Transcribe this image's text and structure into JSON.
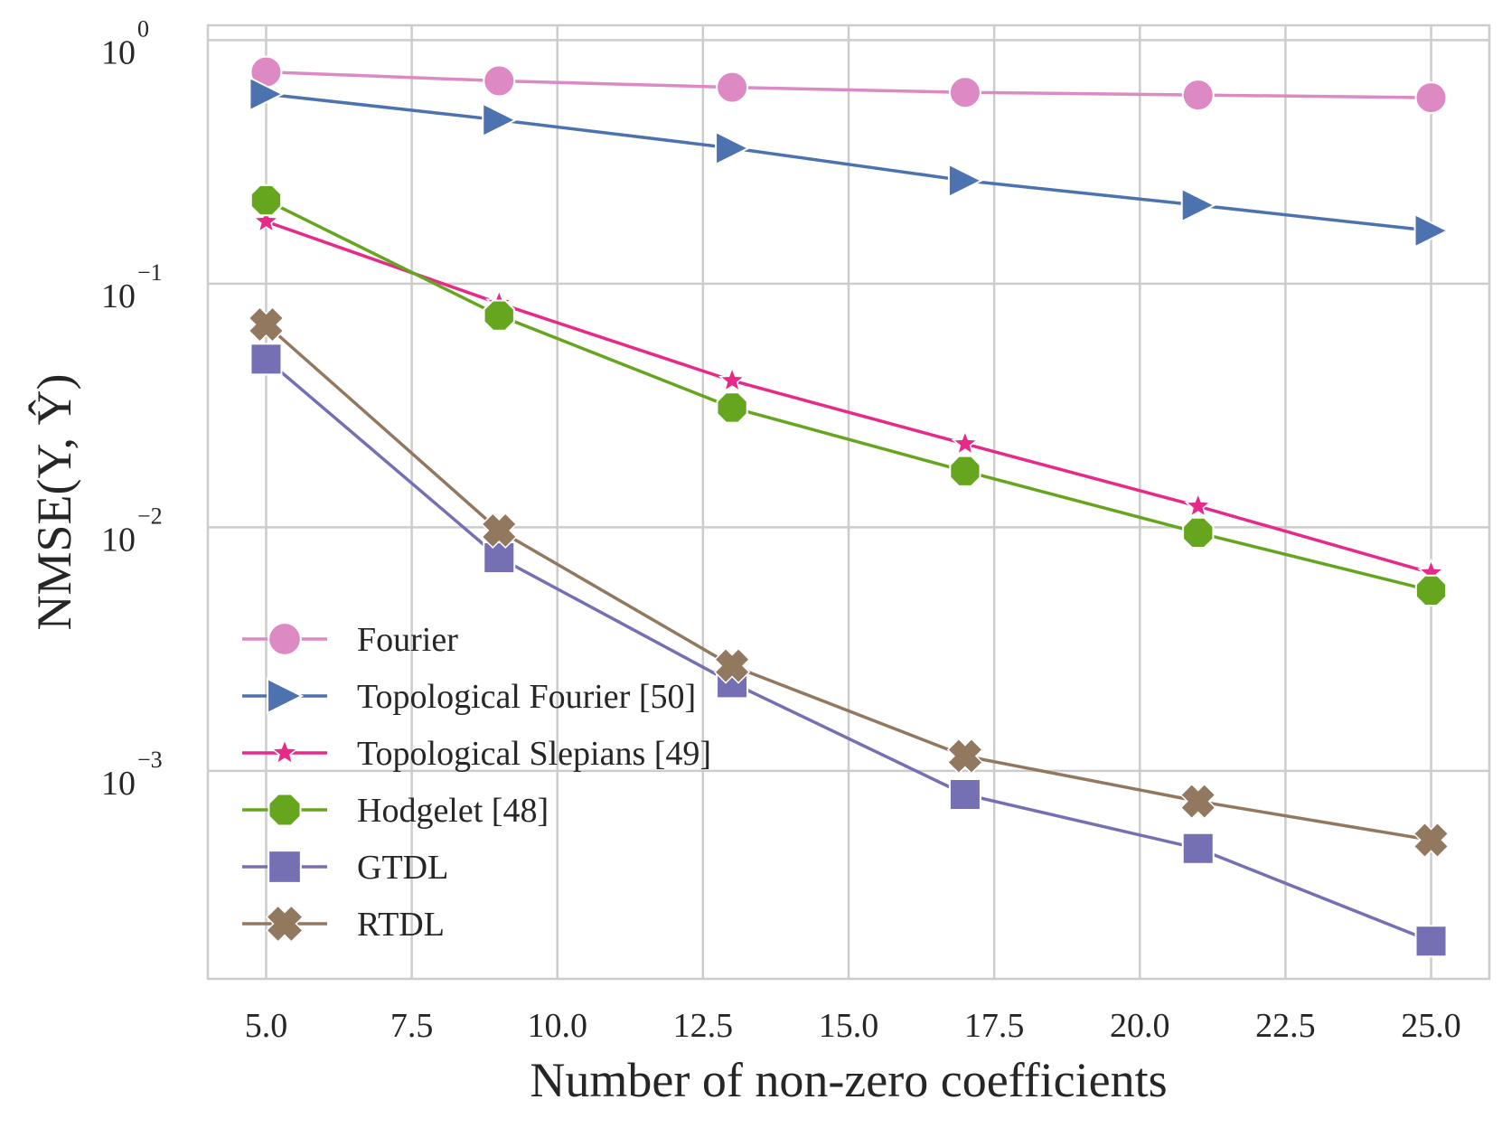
{
  "chart_data": {
    "type": "line",
    "title": "",
    "xlabel": "Number of non-zero coefficients",
    "ylabel": "NMSE(Y, Ŷ)",
    "yscale": "log",
    "xlim": [
      4.0,
      26.0
    ],
    "ylim": [
      0.00014,
      1.15
    ],
    "grid": true,
    "legend_position": "lower-left",
    "x_ticks": [
      5.0,
      7.5,
      10.0,
      12.5,
      15.0,
      17.5,
      20.0,
      22.5,
      25.0
    ],
    "x_tick_labels": [
      "5.0",
      "7.5",
      "10.0",
      "12.5",
      "15.0",
      "17.5",
      "20.0",
      "22.5",
      "25.0"
    ],
    "y_ticks": [
      {
        "value": 1,
        "base": "10",
        "exp": "0"
      },
      {
        "value": 0.1,
        "base": "10",
        "exp": "−1"
      },
      {
        "value": 0.01,
        "base": "10",
        "exp": "−2"
      },
      {
        "value": 0.001,
        "base": "10",
        "exp": "−3"
      }
    ],
    "x": [
      5,
      9,
      13,
      17,
      21,
      25
    ],
    "series": [
      {
        "name": "Fourier",
        "color": "#dd8ac4",
        "marker": "circle",
        "values": [
          0.74,
          0.68,
          0.64,
          0.61,
          0.595,
          0.58
        ]
      },
      {
        "name": "Topological Fourier [50]",
        "color": "#4c72b0",
        "marker": "triangle-right",
        "values": [
          0.6,
          0.47,
          0.36,
          0.265,
          0.21,
          0.165
        ]
      },
      {
        "name": "Topological Slepians [49]",
        "color": "#e7298a",
        "marker": "star",
        "values": [
          0.18,
          0.083,
          0.04,
          0.022,
          0.0122,
          0.0065
        ]
      },
      {
        "name": "Hodgelet [48]",
        "color": "#66a61e",
        "marker": "octagon",
        "values": [
          0.22,
          0.074,
          0.031,
          0.017,
          0.0095,
          0.0055
        ]
      },
      {
        "name": "GTDL",
        "color": "#7570b3",
        "marker": "square",
        "values": [
          0.049,
          0.0075,
          0.0023,
          0.0008,
          0.00048,
          0.0002
        ]
      },
      {
        "name": "RTDL",
        "color": "#937860",
        "marker": "x",
        "values": [
          0.068,
          0.0097,
          0.0027,
          0.00115,
          0.00075,
          0.00052
        ]
      }
    ]
  }
}
